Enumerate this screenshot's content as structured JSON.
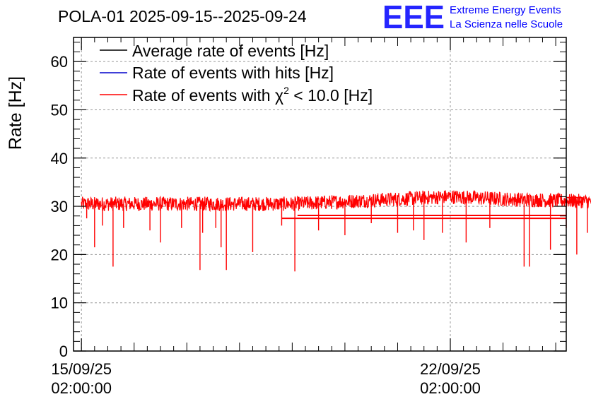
{
  "colors": {
    "average": "#000000",
    "hits": "#0000cc",
    "chi2": "#ff0000",
    "grid": "#999999",
    "logo": "#0000ff"
  },
  "logo": {
    "mark": "EEE",
    "line1": "Extreme Energy Events",
    "line2": "La Scienza nelle Scuole"
  },
  "chart_data": {
    "type": "line",
    "title": "POLA-01 2025-09-15--2025-09-24",
    "ylabel": "Rate [Hz]",
    "xlabel": "",
    "ylim": [
      0,
      65
    ],
    "yticks": [
      0,
      10,
      20,
      30,
      40,
      50,
      60
    ],
    "xlim_days": [
      -0.15,
      9.2
    ],
    "xticks": [
      {
        "day": 0,
        "date": "15/09/25",
        "time": "02:00:00"
      },
      {
        "day": 7,
        "date": "22/09/25",
        "time": "02:00:00"
      }
    ],
    "grid": true,
    "legend_position": "top-left",
    "series": [
      {
        "name": "Average rate of events [Hz]",
        "legend_text": "Average rate of events [Hz]",
        "color_key": "average",
        "visible_in_plot": false
      },
      {
        "name": "Rate of events with hits [Hz]",
        "legend_text": "Rate of events with hits [Hz]",
        "color_key": "hits",
        "visible_in_plot": false
      },
      {
        "name": "Rate of events with chi2 < 10.0 [Hz]",
        "legend_prefix": "Rate of events with ",
        "legend_symbol": "χ",
        "legend_sup": "2",
        "legend_suffix": " < 10.0 [Hz]",
        "color_key": "chi2",
        "visible_in_plot": true
      }
    ],
    "chi2_rate_band": {
      "day_range": [
        0,
        9.7
      ],
      "baseline": [
        {
          "day": 0.0,
          "value": 30.5
        },
        {
          "day": 2.0,
          "value": 30.5
        },
        {
          "day": 4.0,
          "value": 30.5
        },
        {
          "day": 5.0,
          "value": 31.0
        },
        {
          "day": 6.0,
          "value": 31.5
        },
        {
          "day": 7.0,
          "value": 32.0
        },
        {
          "day": 8.0,
          "value": 31.5
        },
        {
          "day": 9.7,
          "value": 31.0
        }
      ],
      "spread": 1.5
    },
    "dips": [
      {
        "day": 0.1,
        "value": 27.5
      },
      {
        "day": 0.25,
        "value": 21.5
      },
      {
        "day": 0.4,
        "value": 26.0
      },
      {
        "day": 0.6,
        "value": 17.5
      },
      {
        "day": 0.8,
        "value": 25.5
      },
      {
        "day": 1.3,
        "value": 25.0
      },
      {
        "day": 1.5,
        "value": 22.5
      },
      {
        "day": 1.9,
        "value": 25.5
      },
      {
        "day": 2.3,
        "value": 24.5
      },
      {
        "day": 2.55,
        "value": 25.5
      },
      {
        "day": 2.25,
        "value": 16.8
      },
      {
        "day": 2.65,
        "value": 21.5
      },
      {
        "day": 2.75,
        "value": 16.8
      },
      {
        "day": 3.25,
        "value": 20.5
      },
      {
        "day": 3.8,
        "value": 26.0
      },
      {
        "day": 4.05,
        "value": 16.5
      },
      {
        "day": 4.5,
        "value": 25.0
      },
      {
        "day": 5.0,
        "value": 24.0
      },
      {
        "day": 5.5,
        "value": 26.5
      },
      {
        "day": 6.0,
        "value": 24.5
      },
      {
        "day": 6.3,
        "value": 25.0
      },
      {
        "day": 6.5,
        "value": 23.0
      },
      {
        "day": 6.85,
        "value": 24.5
      },
      {
        "day": 7.3,
        "value": 22.5
      },
      {
        "day": 7.75,
        "value": 25.5
      },
      {
        "day": 8.4,
        "value": 17.5
      },
      {
        "day": 8.5,
        "value": 17.5
      },
      {
        "day": 8.9,
        "value": 21.0
      },
      {
        "day": 9.2,
        "value": 25.5
      },
      {
        "day": 9.4,
        "value": 20.0
      },
      {
        "day": 9.6,
        "value": 24.5
      }
    ],
    "offscale_lines": [
      31.8,
      31.0,
      30.8,
      28.1,
      27.5
    ]
  }
}
